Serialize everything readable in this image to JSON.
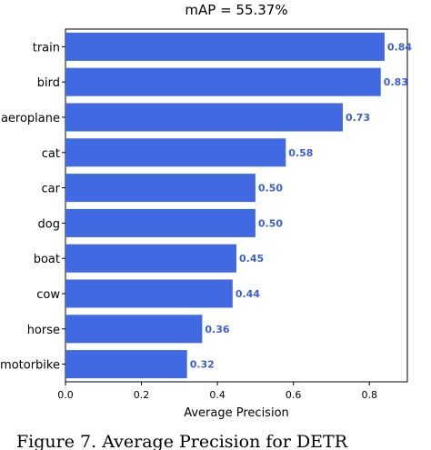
{
  "chart_data": {
    "type": "bar",
    "orientation": "horizontal",
    "title": "mAP = 55.37%",
    "xlabel": "Average Precision",
    "ylabel": "",
    "xlim": [
      0.0,
      0.9
    ],
    "xticks": [
      "0.0",
      "0.2",
      "0.4",
      "0.6",
      "0.8"
    ],
    "xtick_values": [
      0.0,
      0.2,
      0.4,
      0.6,
      0.8
    ],
    "categories": [
      "train",
      "bird",
      "aeroplane",
      "cat",
      "car",
      "dog",
      "boat",
      "cow",
      "horse",
      "motorbike"
    ],
    "values": [
      0.84,
      0.83,
      0.73,
      0.58,
      0.5,
      0.5,
      0.45,
      0.44,
      0.36,
      0.32
    ],
    "value_labels": [
      "0.84",
      "0.83",
      "0.73",
      "0.58",
      "0.50",
      "0.50",
      "0.45",
      "0.44",
      "0.36",
      "0.32"
    ],
    "bar_color": "#4169e1",
    "value_label_color": "#3b5fd9",
    "grid": false,
    "legend": "none"
  },
  "caption": "Figure 7. Average Precision for DETR"
}
